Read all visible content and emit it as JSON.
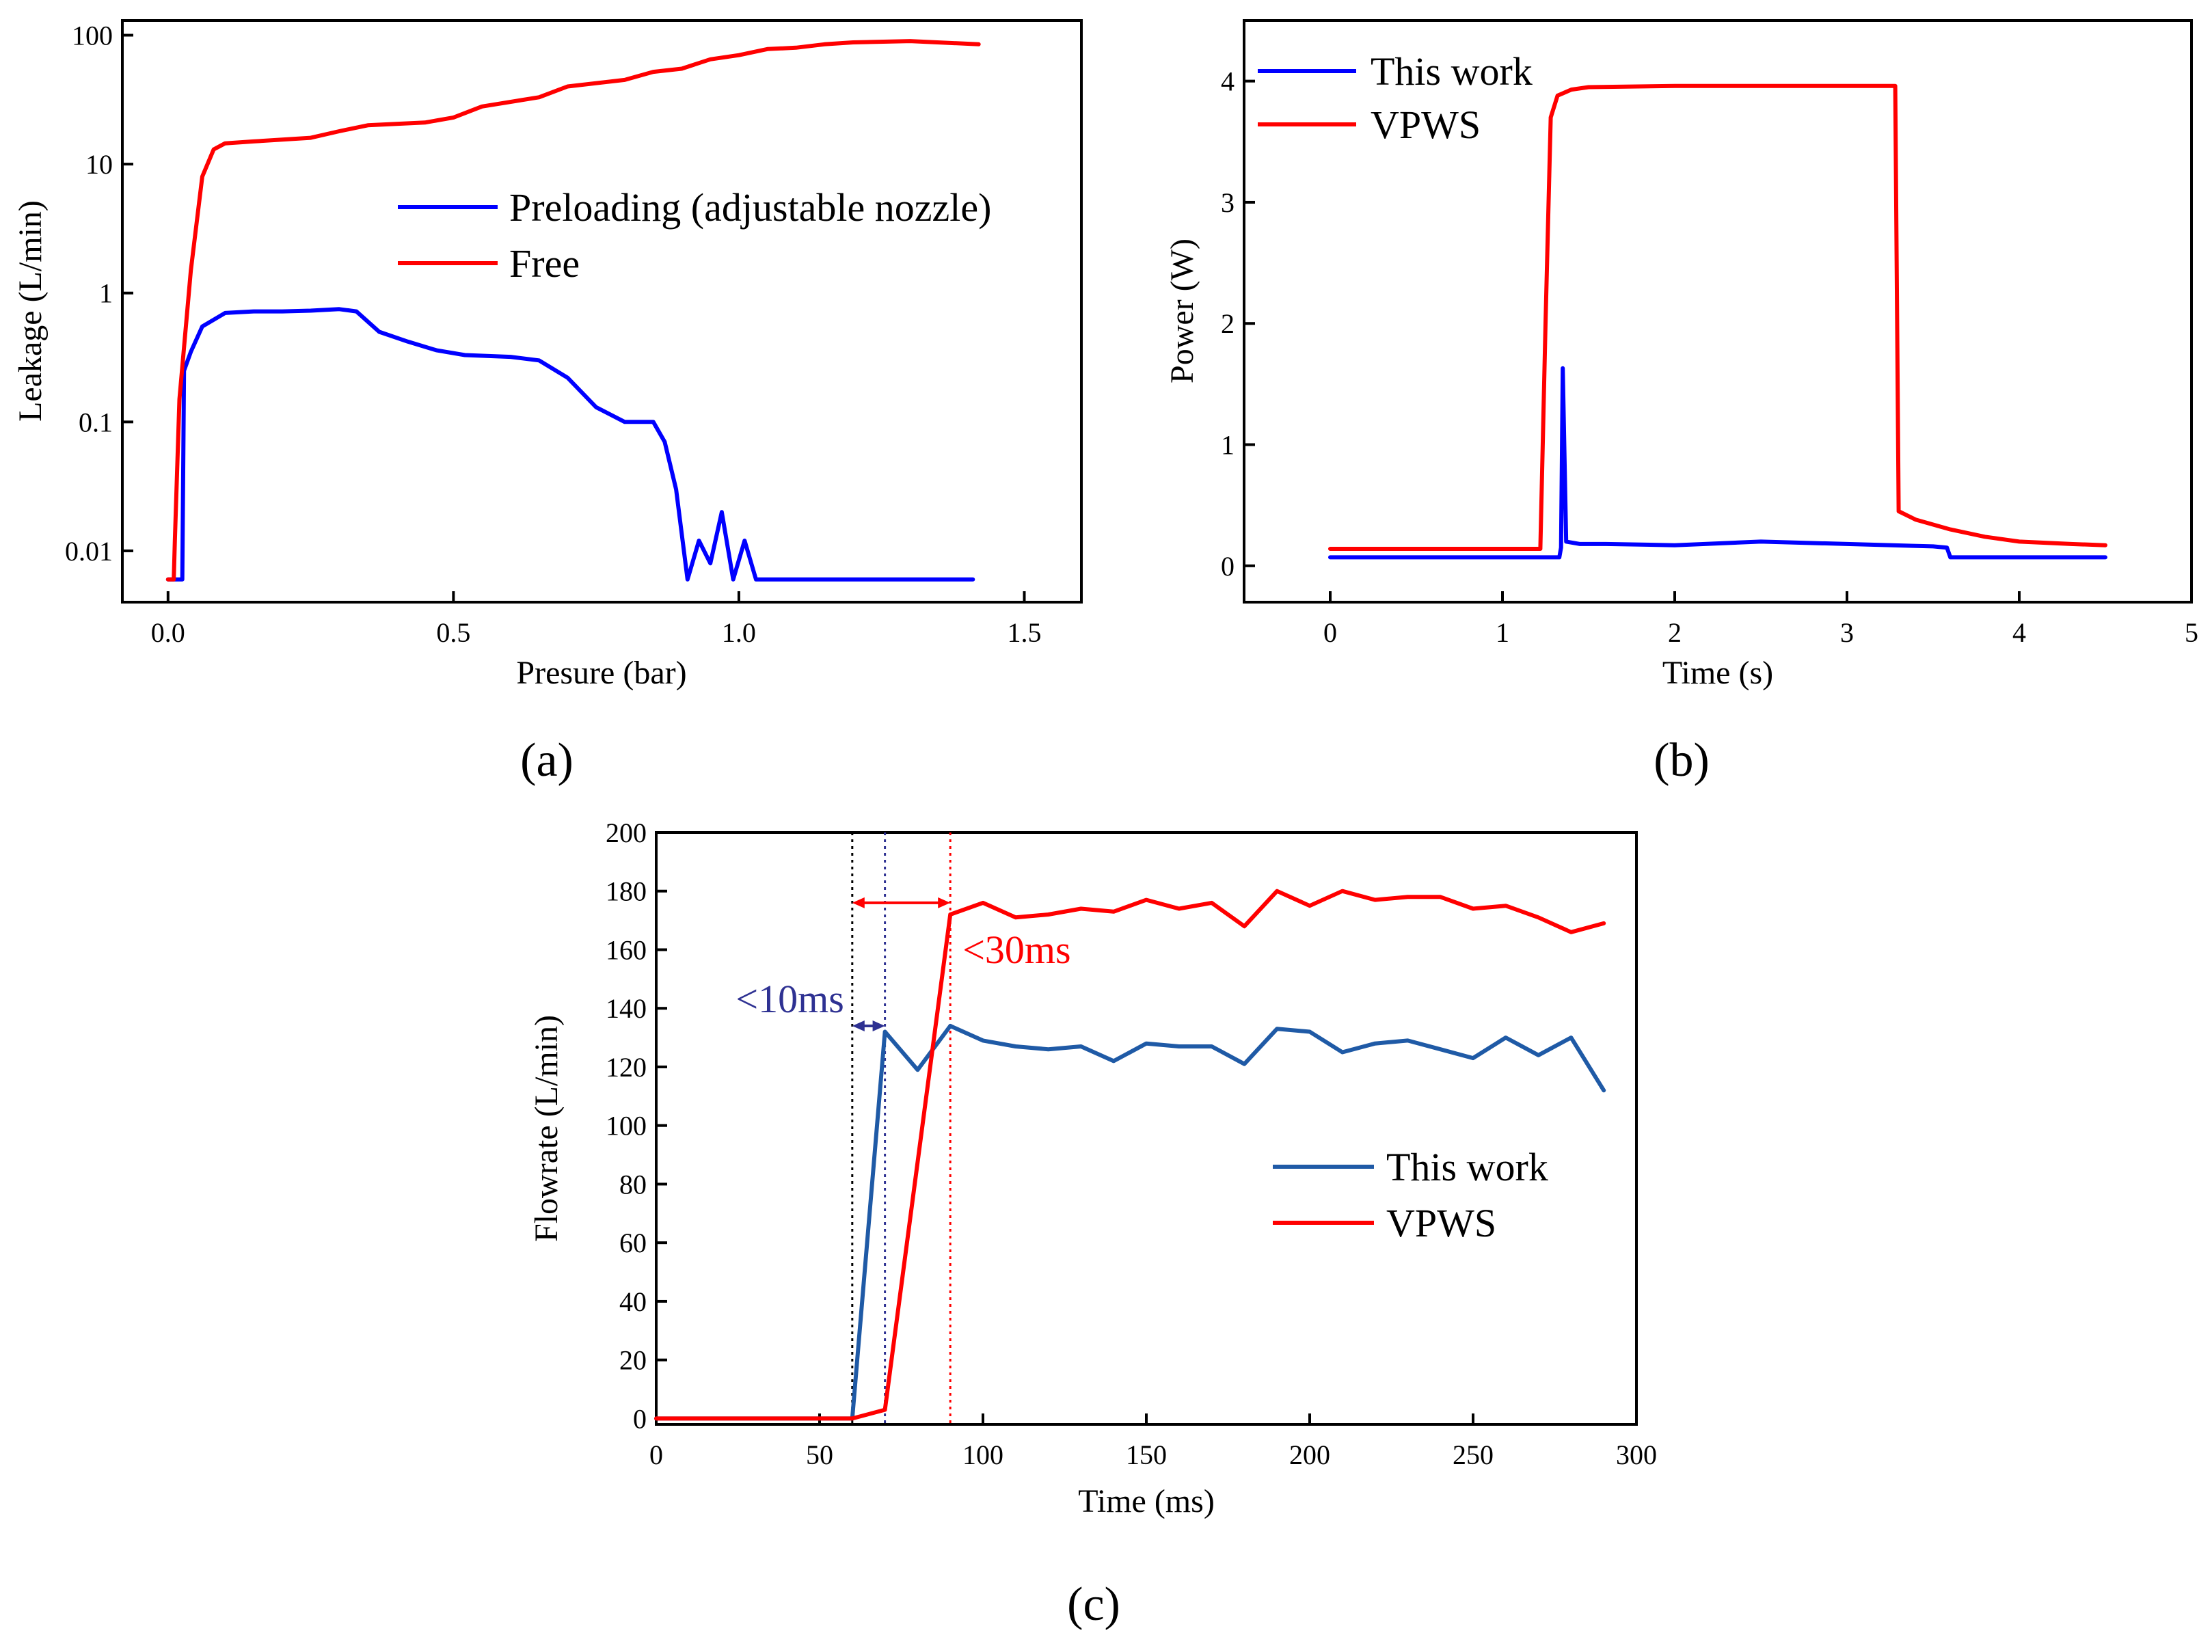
{
  "chart_data": [
    {
      "id": "a",
      "type": "line",
      "panel_label": "(a)",
      "xlabel": "Presure (bar)",
      "ylabel": "Leakage (L/min)",
      "xlim": [
        -0.08,
        1.6
      ],
      "ylim": [
        0.004,
        130
      ],
      "yscale": "log",
      "xticks": [
        0.0,
        0.5,
        1.0,
        1.5
      ],
      "xtick_labels": [
        "0.0",
        "0.5",
        "1.0",
        "1.5"
      ],
      "yticks": [
        0.01,
        0.1,
        1,
        10,
        100
      ],
      "ytick_labels": [
        "0.01",
        "0.1",
        "1",
        "10",
        "100"
      ],
      "legend": [
        "Preloading (adjustable nozzle)",
        "Free"
      ],
      "series": [
        {
          "name": "Preloading (adjustable nozzle)",
          "color": "#0000ff",
          "points": [
            [
              0.0,
              0.006
            ],
            [
              0.02,
              0.006
            ],
            [
              0.025,
              0.006
            ],
            [
              0.028,
              0.25
            ],
            [
              0.04,
              0.35
            ],
            [
              0.06,
              0.55
            ],
            [
              0.1,
              0.7
            ],
            [
              0.15,
              0.72
            ],
            [
              0.2,
              0.72
            ],
            [
              0.25,
              0.73
            ],
            [
              0.3,
              0.75
            ],
            [
              0.33,
              0.72
            ],
            [
              0.37,
              0.5
            ],
            [
              0.42,
              0.42
            ],
            [
              0.47,
              0.36
            ],
            [
              0.52,
              0.33
            ],
            [
              0.6,
              0.32
            ],
            [
              0.65,
              0.3
            ],
            [
              0.7,
              0.22
            ],
            [
              0.75,
              0.13
            ],
            [
              0.8,
              0.1
            ],
            [
              0.85,
              0.1
            ],
            [
              0.87,
              0.07
            ],
            [
              0.89,
              0.03
            ],
            [
              0.91,
              0.006
            ],
            [
              0.93,
              0.012
            ],
            [
              0.95,
              0.008
            ],
            [
              0.97,
              0.02
            ],
            [
              0.99,
              0.006
            ],
            [
              1.01,
              0.012
            ],
            [
              1.03,
              0.006
            ],
            [
              1.2,
              0.006
            ],
            [
              1.41,
              0.006
            ]
          ]
        },
        {
          "name": "Free",
          "color": "#ff0000",
          "points": [
            [
              0.0,
              0.006
            ],
            [
              0.01,
              0.006
            ],
            [
              0.012,
              0.012
            ],
            [
              0.02,
              0.15
            ],
            [
              0.04,
              1.5
            ],
            [
              0.06,
              8
            ],
            [
              0.08,
              13
            ],
            [
              0.1,
              14.5
            ],
            [
              0.15,
              15
            ],
            [
              0.25,
              16
            ],
            [
              0.3,
              18
            ],
            [
              0.35,
              20
            ],
            [
              0.45,
              21
            ],
            [
              0.5,
              23
            ],
            [
              0.55,
              28
            ],
            [
              0.65,
              33
            ],
            [
              0.7,
              40
            ],
            [
              0.8,
              45
            ],
            [
              0.85,
              52
            ],
            [
              0.9,
              55
            ],
            [
              0.95,
              65
            ],
            [
              1.0,
              70
            ],
            [
              1.05,
              78
            ],
            [
              1.1,
              80
            ],
            [
              1.15,
              85
            ],
            [
              1.2,
              88
            ],
            [
              1.3,
              90
            ],
            [
              1.42,
              85
            ]
          ]
        }
      ]
    },
    {
      "id": "b",
      "type": "line",
      "panel_label": "(b)",
      "xlabel": "Time (s)",
      "ylabel": "Power (W)",
      "xlim": [
        -0.5,
        5
      ],
      "ylim": [
        -0.3,
        4.5
      ],
      "xticks": [
        0,
        1,
        2,
        3,
        4,
        5
      ],
      "xtick_labels": [
        "0",
        "1",
        "2",
        "3",
        "4",
        "5"
      ],
      "yticks": [
        0,
        1,
        2,
        3,
        4
      ],
      "ytick_labels": [
        "0",
        "1",
        "2",
        "3",
        "4"
      ],
      "legend": [
        "This work",
        "VPWS"
      ],
      "series": [
        {
          "name": "This work",
          "color": "#0000ff",
          "points": [
            [
              0,
              0.07
            ],
            [
              1.33,
              0.07
            ],
            [
              1.34,
              0.15
            ],
            [
              1.35,
              1.63
            ],
            [
              1.37,
              0.2
            ],
            [
              1.45,
              0.18
            ],
            [
              1.6,
              0.18
            ],
            [
              2.0,
              0.17
            ],
            [
              2.5,
              0.2
            ],
            [
              3.0,
              0.18
            ],
            [
              3.5,
              0.16
            ],
            [
              3.58,
              0.15
            ],
            [
              3.6,
              0.07
            ],
            [
              4.5,
              0.07
            ]
          ]
        },
        {
          "name": "VPWS",
          "color": "#ff0000",
          "points": [
            [
              0,
              0.14
            ],
            [
              1.22,
              0.14
            ],
            [
              1.25,
              2.0
            ],
            [
              1.28,
              3.7
            ],
            [
              1.32,
              3.88
            ],
            [
              1.4,
              3.93
            ],
            [
              1.5,
              3.95
            ],
            [
              2.0,
              3.96
            ],
            [
              3.28,
              3.96
            ],
            [
              3.3,
              0.45
            ],
            [
              3.4,
              0.38
            ],
            [
              3.6,
              0.3
            ],
            [
              3.8,
              0.24
            ],
            [
              4.0,
              0.2
            ],
            [
              4.3,
              0.18
            ],
            [
              4.5,
              0.17
            ]
          ]
        }
      ]
    },
    {
      "id": "c",
      "type": "line",
      "panel_label": "(c)",
      "xlabel": "Time (ms)",
      "ylabel": "Flowrate (L/min)",
      "xlim": [
        0,
        300
      ],
      "ylim": [
        -2,
        200
      ],
      "xticks": [
        0,
        50,
        100,
        150,
        200,
        250,
        300
      ],
      "xtick_labels": [
        "0",
        "50",
        "100",
        "150",
        "200",
        "250",
        "300"
      ],
      "yticks": [
        0,
        20,
        40,
        60,
        80,
        100,
        120,
        140,
        160,
        180,
        200
      ],
      "ytick_labels": [
        "0",
        "20",
        "40",
        "60",
        "80",
        "100",
        "120",
        "140",
        "160",
        "180",
        "200"
      ],
      "legend": [
        "This work",
        "VPWS"
      ],
      "annotations": [
        {
          "text": "<10ms",
          "color": "#2e3192",
          "x_from": 60,
          "x_to": 70,
          "y": 134
        },
        {
          "text": "<30ms",
          "color": "#ff0000",
          "x_from": 60,
          "x_to": 90,
          "y": 176
        }
      ],
      "vlines": [
        {
          "x": 60,
          "color": "#000000"
        },
        {
          "x": 70,
          "color": "#2e3192"
        },
        {
          "x": 90,
          "color": "#ff0000"
        }
      ],
      "series": [
        {
          "name": "This work",
          "color": "#1f5aa6",
          "points": [
            [
              0,
              0
            ],
            [
              10,
              0
            ],
            [
              20,
              0
            ],
            [
              30,
              0
            ],
            [
              40,
              0
            ],
            [
              50,
              0
            ],
            [
              60,
              0
            ],
            [
              70,
              132
            ],
            [
              80,
              119
            ],
            [
              90,
              134
            ],
            [
              100,
              129
            ],
            [
              110,
              127
            ],
            [
              120,
              126
            ],
            [
              130,
              127
            ],
            [
              140,
              122
            ],
            [
              150,
              128
            ],
            [
              160,
              127
            ],
            [
              170,
              127
            ],
            [
              180,
              121
            ],
            [
              190,
              133
            ],
            [
              200,
              132
            ],
            [
              210,
              125
            ],
            [
              220,
              128
            ],
            [
              230,
              129
            ],
            [
              240,
              126
            ],
            [
              250,
              123
            ],
            [
              260,
              130
            ],
            [
              270,
              124
            ],
            [
              280,
              130
            ],
            [
              290,
              112
            ]
          ]
        },
        {
          "name": "VPWS",
          "color": "#ff0000",
          "points": [
            [
              0,
              0
            ],
            [
              10,
              0
            ],
            [
              20,
              0
            ],
            [
              30,
              0
            ],
            [
              40,
              0
            ],
            [
              50,
              0
            ],
            [
              60,
              0
            ],
            [
              70,
              3
            ],
            [
              90,
              172
            ],
            [
              100,
              176
            ],
            [
              110,
              171
            ],
            [
              120,
              172
            ],
            [
              130,
              174
            ],
            [
              140,
              173
            ],
            [
              150,
              177
            ],
            [
              160,
              174
            ],
            [
              170,
              176
            ],
            [
              180,
              168
            ],
            [
              190,
              180
            ],
            [
              200,
              175
            ],
            [
              210,
              180
            ],
            [
              220,
              177
            ],
            [
              230,
              178
            ],
            [
              240,
              178
            ],
            [
              250,
              174
            ],
            [
              260,
              175
            ],
            [
              270,
              171
            ],
            [
              280,
              166
            ],
            [
              290,
              169
            ]
          ]
        }
      ]
    }
  ]
}
